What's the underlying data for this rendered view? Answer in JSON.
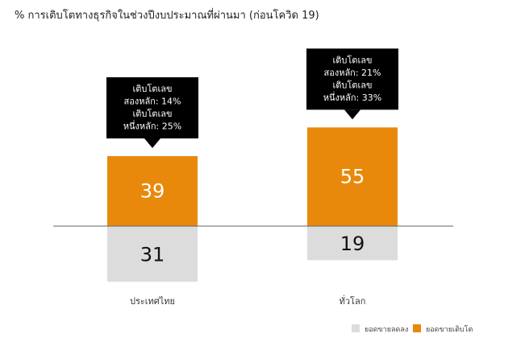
{
  "title": "% การเติบโตทางธุรกิจในช่วงปีงบประมาณที่ผ่านมา (ก่อนโควิด 19)",
  "colors": {
    "growth": "#E8890C",
    "decline": "#DCDCDC",
    "callout": "#000000",
    "baseline": "#666666"
  },
  "chart_data": {
    "type": "bar",
    "categories": [
      "ประเทศไทย",
      "ทั่วโลก"
    ],
    "series": [
      {
        "name": "ยอดขายเติบโต",
        "values": [
          39,
          55
        ],
        "color": "#E8890C"
      },
      {
        "name": "ยอดขายลดลง",
        "values": [
          31,
          19
        ],
        "color": "#DCDCDC"
      }
    ],
    "callouts": [
      [
        "เติบโตเลข",
        "สองหลัก: 14%",
        "เติบโตเลข",
        "หนึ่งหลัก: 25%"
      ],
      [
        "เติบโตเลข",
        "สองหลัก: 21%",
        "เติบโตเลข",
        "หนึ่งหลัก: 33%"
      ]
    ],
    "legend": [
      "ยอดขายลดลง",
      "ยอดขายเติบโต"
    ],
    "legend_position": "bottom-right",
    "grid": false
  }
}
